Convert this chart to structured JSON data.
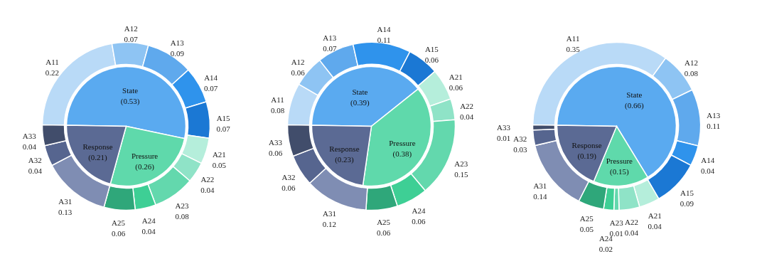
{
  "chart_data": [
    {
      "type": "pie",
      "series": [
        {
          "type": "pie",
          "values": [
            0.53,
            0.26,
            0.21
          ],
          "value_labels": [
            "State\n(0.53)",
            "Pressure\n(0.26)",
            "Response\n(0.21)"
          ],
          "colors": [
            "#5aaaf0",
            "#5fd9ab",
            "#5b6a94"
          ]
        },
        {
          "type": "donut",
          "values": [
            0.22,
            0.07,
            0.09,
            0.07,
            0.07,
            0.05,
            0.04,
            0.08,
            0.04,
            0.06,
            0.13,
            0.04,
            0.04
          ],
          "value_labels": [
            "A11\n0.22",
            "A12\n0.07",
            "A13\n0.09",
            "A14\n0.07",
            "A15\n0.07",
            "A21\n0.05",
            "A22\n0.04",
            "A23\n0.08",
            "A24\n0.04",
            "A25\n0.06",
            "A31\n0.13",
            "A32\n0.04",
            "A33\n0.04"
          ],
          "colors": [
            "#b9daf7",
            "#8ec4f3",
            "#5fa9ed",
            "#2f93ec",
            "#1b78d4",
            "#b5eedb",
            "#8fe3c7",
            "#63d8ad",
            "#3ecf95",
            "#2fa77a",
            "#7f8db3",
            "#56658f",
            "#414d6b"
          ]
        }
      ]
    },
    {
      "type": "pie",
      "series": [
        {
          "type": "pie",
          "values": [
            0.39,
            0.38,
            0.23
          ],
          "value_labels": [
            "State\n(0.39)",
            "Pressure\n(0.38)",
            "Response\n(0.23)"
          ],
          "colors": [
            "#5aaaf0",
            "#5fd9ab",
            "#5b6a94"
          ]
        },
        {
          "type": "donut",
          "values": [
            0.08,
            0.06,
            0.07,
            0.11,
            0.06,
            0.06,
            0.04,
            0.15,
            0.06,
            0.06,
            0.12,
            0.06,
            0.06
          ],
          "value_labels": [
            "A11\n0.08",
            "A12\n0.06",
            "A13\n0.07",
            "A14\n0.11",
            "A15\n0.06",
            "A21\n0.06",
            "A22\n0.04",
            "A23\n0.15",
            "A24\n0.06",
            "A25\n0.06",
            "A31\n0.12",
            "A32\n0.06",
            "A33\n0.06"
          ],
          "colors": [
            "#b9daf7",
            "#8ec4f3",
            "#5fa9ed",
            "#2f93ec",
            "#1b78d4",
            "#b5eedb",
            "#8fe3c7",
            "#63d8ad",
            "#3ecf95",
            "#2fa77a",
            "#7f8db3",
            "#56658f",
            "#414d6b"
          ]
        }
      ]
    },
    {
      "type": "pie",
      "series": [
        {
          "type": "pie",
          "values": [
            0.66,
            0.15,
            0.19
          ],
          "value_labels": [
            "State\n(0.66)",
            "Pressure\n(0.15)",
            "Response\n(0.19)"
          ],
          "colors": [
            "#5aaaf0",
            "#5fd9ab",
            "#5b6a94"
          ]
        },
        {
          "type": "donut",
          "values": [
            0.35,
            0.08,
            0.11,
            0.04,
            0.09,
            0.04,
            0.04,
            0.01,
            0.02,
            0.05,
            0.14,
            0.03,
            0.01
          ],
          "value_labels": [
            "A11\n0.35",
            "A12\n0.08",
            "A13\n0.11",
            "A14\n0.04",
            "A15\n0.09",
            "A21\n0.04",
            "A22\n0.04",
            "A23\n0.01",
            "A24\n0.02",
            "A25\n0.05",
            "A31\n0.14",
            "A32\n0.03",
            "A33\n0.01"
          ],
          "colors": [
            "#b9daf7",
            "#8ec4f3",
            "#5fa9ed",
            "#2f93ec",
            "#1b78d4",
            "#b5eedb",
            "#8fe3c7",
            "#63d8ad",
            "#3ecf95",
            "#2fa77a",
            "#7f8db3",
            "#56658f",
            "#414d6b"
          ]
        }
      ]
    }
  ]
}
